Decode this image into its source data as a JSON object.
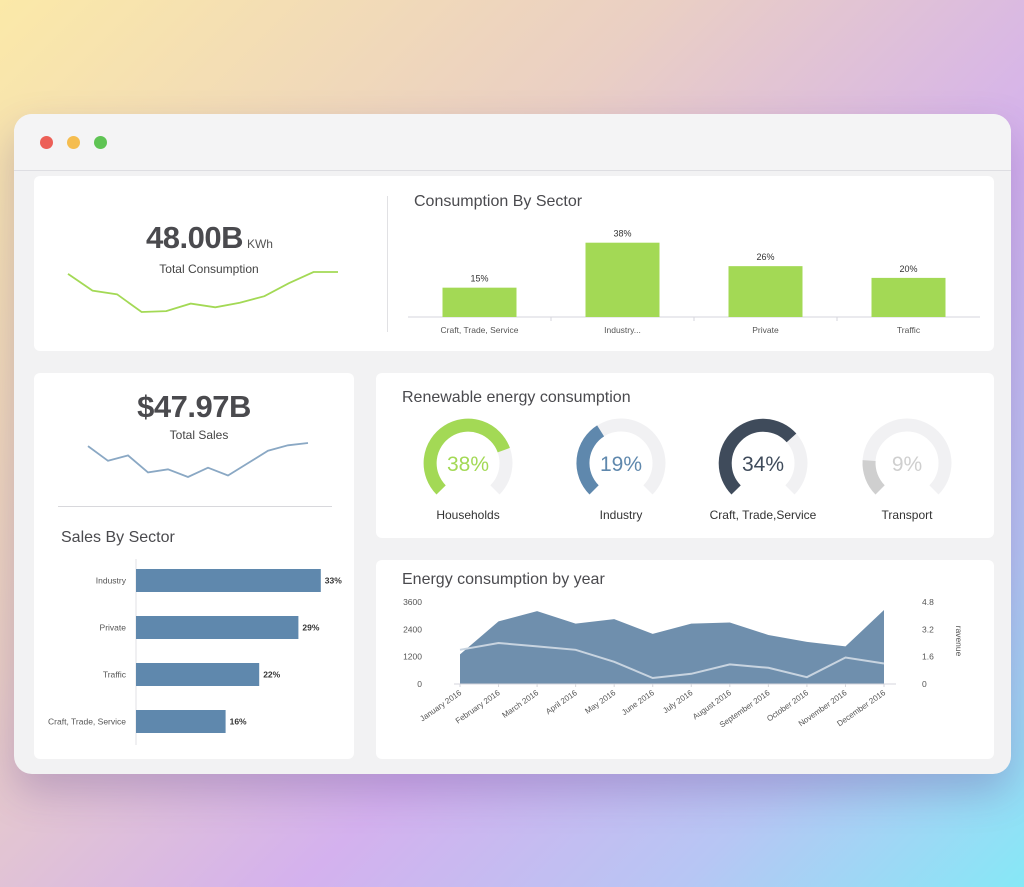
{
  "total_consumption": {
    "value": "48.00B",
    "unit": "KWh",
    "label": "Total Consumption",
    "sparkline": [
      4.4,
      2.6,
      2.2,
      0.3,
      0.4,
      1.2,
      0.8,
      1.3,
      2.0,
      3.4,
      4.6,
      4.6
    ]
  },
  "total_sales": {
    "value": "$47.97B",
    "label": "Total Sales",
    "sparkline": [
      4.6,
      2.7,
      3.4,
      1.2,
      1.6,
      0.6,
      1.8,
      0.8,
      2.4,
      4.0,
      4.7,
      5.0
    ]
  },
  "consumption_by_sector": {
    "title": "Consumption By Sector",
    "chart_data": {
      "type": "bar",
      "categories": [
        "Craft, Trade, Service",
        "Industry...",
        "Private",
        "Traffic"
      ],
      "values": [
        15,
        38,
        26,
        20
      ],
      "value_labels": [
        "15%",
        "38%",
        "26%",
        "20%"
      ],
      "ylim": [
        0,
        45
      ],
      "color": "#a3d955"
    }
  },
  "sales_by_sector": {
    "title": "Sales By Sector",
    "chart_data": {
      "type": "bar",
      "orientation": "horizontal",
      "categories": [
        "Industry",
        "Private",
        "Traffic",
        "Craft, Trade, Service"
      ],
      "values": [
        33,
        29,
        22,
        16
      ],
      "value_labels": [
        "33%",
        "29%",
        "22%",
        "16%"
      ],
      "xlim": [
        0,
        35
      ],
      "color": "#5f88ad"
    }
  },
  "renewable": {
    "title": "Renewable energy consumption",
    "gauges": [
      {
        "label": "Households",
        "value": 38,
        "display": "38%",
        "color": "#a3d955"
      },
      {
        "label": "Industry",
        "value": 19,
        "display": "19%",
        "color": "#5f88ad"
      },
      {
        "label": "Craft, Trade,Service",
        "value": 34,
        "display": "34%",
        "color": "#3f4b5b"
      },
      {
        "label": "Transport",
        "value": 9,
        "display": "9%",
        "color": "#cfcfcf"
      }
    ]
  },
  "energy_by_year": {
    "title": "Energy consumption by year",
    "right_axis_label": "ravenue",
    "chart_data": {
      "type": "area",
      "categories": [
        "January 2016",
        "February 2016",
        "March 2016",
        "April 2016",
        "May 2016",
        "June 2016",
        "July 2016",
        "August 2016",
        "September 2016",
        "October 2016",
        "November 2016",
        "December 2016"
      ],
      "series": [
        {
          "values": [
            1300,
            2750,
            3200,
            2650,
            2850,
            2200,
            2650,
            2700,
            2150,
            1850,
            1650,
            3250
          ],
          "color": "#6f8fad"
        },
        {
          "values": [
            2.0,
            2.4,
            2.2,
            2.0,
            1.3,
            0.35,
            0.6,
            1.15,
            0.95,
            0.4,
            1.55,
            1.2
          ],
          "color": "#c8d4e0",
          "axis": "right"
        }
      ],
      "yticks_left": [
        "0",
        "1200",
        "2400",
        "3600"
      ],
      "ylim_left": [
        0,
        3600
      ],
      "yticks_right": [
        "0",
        "1.6",
        "3.2",
        "4.8"
      ],
      "ylim_right": [
        0,
        4.8
      ]
    }
  }
}
